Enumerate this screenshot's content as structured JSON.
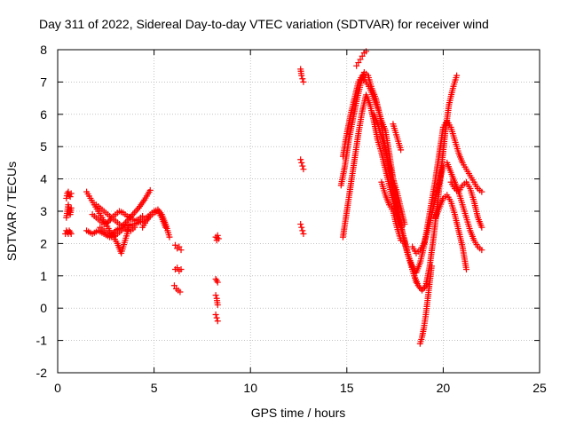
{
  "chart_data": {
    "type": "scatter",
    "title": "Day 311 of 2022, Sidereal Day-to-day VTEC variation (SDTVAR) for receiver wind",
    "xlabel": "GPS time / hours",
    "ylabel": "SDTVAR / TECUs",
    "xlim": [
      0,
      25
    ],
    "ylim": [
      -2,
      8
    ],
    "xticks": [
      0,
      5,
      10,
      15,
      20,
      25
    ],
    "yticks": [
      -2,
      -1,
      0,
      1,
      2,
      3,
      4,
      5,
      6,
      7,
      8
    ],
    "grid": true,
    "marker": "+",
    "colors": {
      "series": "#ff0000",
      "grid": "#a0a0a0",
      "axes": "#000000"
    },
    "series": [
      {
        "name": "SDTVAR",
        "segments": [
          {
            "x": [
              0.4,
              0.45,
              0.5,
              0.55,
              0.6,
              0.65,
              0.7
            ],
            "y": [
              2.3,
              2.4,
              2.35,
              2.3,
              2.4,
              2.35,
              2.3
            ]
          },
          {
            "x": [
              0.45,
              0.5,
              0.55,
              0.6,
              0.65,
              0.7
            ],
            "y": [
              2.8,
              3.0,
              3.2,
              3.0,
              2.9,
              3.1
            ]
          },
          {
            "x": [
              0.45,
              0.5,
              0.55,
              0.6,
              0.65,
              0.7
            ],
            "y": [
              3.4,
              3.55,
              3.6,
              3.5,
              3.45,
              3.55
            ]
          },
          {
            "x": [
              1.5,
              1.8,
              2.1,
              2.4,
              2.7,
              3.0,
              3.3,
              3.6,
              3.9,
              4.2,
              4.5,
              4.8
            ],
            "y": [
              2.4,
              2.3,
              2.4,
              2.3,
              2.2,
              2.4,
              2.5,
              2.7,
              2.9,
              3.1,
              3.35,
              3.65
            ]
          },
          {
            "x": [
              1.5,
              1.7,
              1.9,
              2.1,
              2.3,
              2.5,
              2.7,
              2.9,
              3.1,
              3.3,
              3.5,
              3.7
            ],
            "y": [
              3.6,
              3.4,
              3.2,
              3.0,
              2.8,
              2.6,
              2.4,
              2.2,
              2.0,
              1.7,
              2.1,
              2.5
            ]
          },
          {
            "x": [
              1.8,
              2.0,
              2.2,
              2.4,
              2.6,
              2.8,
              3.0,
              3.2,
              3.4,
              3.6,
              3.8,
              4.0,
              4.2,
              4.4
            ],
            "y": [
              2.9,
              2.8,
              2.7,
              2.6,
              2.65,
              2.8,
              2.9,
              3.0,
              2.95,
              2.85,
              2.8,
              2.7,
              2.75,
              2.85
            ]
          },
          {
            "x": [
              2.0,
              2.2,
              2.4,
              2.6,
              2.8,
              3.0,
              3.2,
              3.4,
              3.6,
              3.8,
              4.0
            ],
            "y": [
              3.2,
              3.1,
              3.0,
              2.9,
              2.8,
              2.7,
              2.6,
              2.5,
              2.4,
              2.4,
              2.5
            ]
          },
          {
            "x": [
              2.2,
              2.4,
              2.6,
              2.8,
              3.0,
              3.2,
              3.4,
              3.6,
              3.8
            ],
            "y": [
              2.5,
              2.4,
              2.3,
              2.2,
              2.25,
              2.35,
              2.45,
              2.55,
              2.6
            ]
          },
          {
            "x": [
              3.8,
              4.0,
              4.2,
              4.4,
              4.6,
              4.8,
              5.0,
              5.2,
              5.4,
              5.6,
              5.8
            ],
            "y": [
              2.5,
              2.6,
              2.65,
              2.7,
              2.8,
              2.9,
              3.0,
              3.05,
              2.9,
              2.6,
              2.2
            ]
          },
          {
            "x": [
              4.4,
              4.6,
              4.8,
              5.0,
              5.2,
              5.4,
              5.6
            ],
            "y": [
              2.5,
              2.7,
              2.85,
              2.95,
              3.0,
              2.8,
              2.5
            ]
          },
          {
            "x": [
              6.1,
              6.2,
              6.3,
              6.4
            ],
            "y": [
              1.95,
              1.85,
              1.9,
              1.8
            ]
          },
          {
            "x": [
              6.1,
              6.2,
              6.3,
              6.4
            ],
            "y": [
              1.2,
              1.25,
              1.15,
              1.2
            ]
          },
          {
            "x": [
              6.05,
              6.15,
              6.25,
              6.35
            ],
            "y": [
              0.7,
              0.6,
              0.55,
              0.5
            ]
          },
          {
            "x": [
              8.2,
              8.25,
              8.3,
              8.35
            ],
            "y": [
              2.2,
              2.1,
              2.25,
              2.15
            ]
          },
          {
            "x": [
              8.2,
              8.25,
              8.3
            ],
            "y": [
              0.9,
              0.85,
              0.8
            ]
          },
          {
            "x": [
              8.2,
              8.25,
              8.3
            ],
            "y": [
              0.4,
              0.3,
              0.1
            ]
          },
          {
            "x": [
              8.2,
              8.25,
              8.3
            ],
            "y": [
              -0.2,
              -0.3,
              -0.4
            ]
          },
          {
            "x": [
              12.6,
              12.65,
              12.7,
              12.75
            ],
            "y": [
              7.4,
              7.2,
              7.1,
              7.0
            ]
          },
          {
            "x": [
              12.6,
              12.65,
              12.7,
              12.75
            ],
            "y": [
              4.6,
              4.5,
              4.4,
              4.3
            ]
          },
          {
            "x": [
              12.6,
              12.65,
              12.7,
              12.75
            ],
            "y": [
              2.6,
              2.5,
              2.4,
              2.3
            ]
          },
          {
            "x": [
              14.8,
              15.0,
              15.2,
              15.4,
              15.6,
              15.8,
              16.0,
              16.2,
              16.4,
              16.6,
              16.8,
              17.0,
              17.2,
              17.4,
              17.6,
              17.8,
              18.0,
              18.2,
              18.4,
              18.6,
              18.8,
              19.0,
              19.2,
              19.4,
              19.6,
              19.8,
              20.0,
              20.2,
              20.4,
              20.6,
              20.8,
              21.0,
              21.2,
              21.4,
              21.6,
              21.8,
              22.0
            ],
            "y": [
              4.7,
              5.4,
              6.0,
              6.5,
              7.0,
              7.2,
              7.0,
              6.8,
              6.5,
              6.2,
              5.8,
              5.5,
              4.8,
              4.0,
              3.2,
              2.6,
              2.0,
              1.6,
              1.3,
              1.1,
              1.4,
              1.9,
              2.6,
              3.3,
              4.0,
              4.8,
              5.6,
              5.8,
              5.6,
              5.2,
              4.8,
              4.5,
              4.3,
              4.1,
              3.9,
              3.7,
              3.6
            ]
          },
          {
            "x": [
              14.7,
              14.9,
              15.1,
              15.3,
              15.5,
              15.7,
              15.9,
              16.1,
              16.3,
              16.5,
              16.7,
              16.9,
              17.1,
              17.3,
              17.5,
              17.7,
              17.9,
              18.1,
              18.3,
              18.5,
              18.7,
              18.9,
              19.1,
              19.3,
              19.5,
              19.7,
              19.9,
              20.1,
              20.3,
              20.5,
              20.7
            ],
            "y": [
              3.8,
              4.4,
              5.2,
              5.8,
              6.4,
              6.9,
              7.3,
              7.2,
              6.8,
              6.5,
              6.0,
              5.3,
              4.6,
              3.9,
              3.3,
              2.8,
              2.3,
              1.8,
              1.4,
              1.0,
              0.7,
              0.55,
              0.7,
              1.3,
              2.2,
              3.2,
              4.3,
              5.4,
              6.3,
              6.8,
              7.2
            ]
          },
          {
            "x": [
              15.5,
              15.6,
              15.7,
              15.8,
              15.9,
              16.0
            ],
            "y": [
              7.5,
              7.6,
              7.7,
              7.8,
              7.9,
              7.95
            ]
          },
          {
            "x": [
              14.8,
              15.0,
              15.2,
              15.4,
              15.6,
              15.8,
              16.0,
              16.2,
              16.4,
              16.6,
              16.8,
              17.0,
              17.2,
              17.4,
              17.6,
              17.8,
              18.0,
              18.2,
              18.4,
              18.6
            ],
            "y": [
              2.2,
              3.0,
              3.8,
              4.6,
              5.4,
              6.1,
              6.6,
              6.3,
              5.8,
              5.2,
              4.8,
              4.3,
              3.8,
              3.3,
              2.9,
              2.5,
              2.1,
              1.6,
              1.2,
              0.8
            ]
          },
          {
            "x": [
              16.4,
              16.6,
              16.8,
              17.0,
              17.2,
              17.4,
              17.6,
              17.8,
              18.0
            ],
            "y": [
              6.0,
              5.7,
              5.3,
              4.9,
              4.4,
              4.0,
              3.6,
              3.1,
              2.6
            ]
          },
          {
            "x": [
              16.8,
              17.0,
              17.2,
              17.4,
              17.6,
              17.8
            ],
            "y": [
              3.9,
              3.5,
              3.2,
              3.0,
              2.5,
              2.1
            ]
          },
          {
            "x": [
              17.4,
              17.5,
              17.6,
              17.7,
              17.8
            ],
            "y": [
              5.7,
              5.5,
              5.3,
              5.1,
              4.9
            ]
          },
          {
            "x": [
              18.4,
              18.6,
              18.8,
              19.0,
              19.2,
              19.4,
              19.6,
              19.8,
              20.0
            ],
            "y": [
              1.9,
              1.7,
              1.8,
              2.0,
              2.4,
              2.9,
              3.4,
              3.9,
              4.4
            ]
          },
          {
            "x": [
              18.8,
              18.9,
              19.0,
              19.1,
              19.2,
              19.3,
              19.4
            ],
            "y": [
              -1.1,
              -0.9,
              -0.6,
              -0.2,
              0.3,
              0.8,
              1.3
            ]
          },
          {
            "x": [
              19.6,
              19.8,
              20.0,
              20.2,
              20.4,
              20.6,
              20.8,
              21.0,
              21.2
            ],
            "y": [
              2.8,
              3.1,
              3.4,
              3.5,
              3.3,
              2.9,
              2.4,
              1.9,
              1.2
            ]
          },
          {
            "x": [
              20.2,
              20.4,
              20.6,
              20.8,
              21.0,
              21.2,
              21.4,
              21.6,
              21.8,
              22.0
            ],
            "y": [
              4.5,
              4.2,
              3.9,
              3.6,
              3.2,
              2.8,
              2.4,
              2.1,
              1.9,
              1.8
            ]
          },
          {
            "x": [
              20.4,
              20.6,
              20.8,
              21.0,
              21.2,
              21.4,
              21.6,
              21.8,
              22.0
            ],
            "y": [
              3.9,
              3.7,
              3.6,
              3.8,
              3.9,
              3.7,
              3.3,
              2.8,
              2.5
            ]
          }
        ]
      }
    ]
  }
}
